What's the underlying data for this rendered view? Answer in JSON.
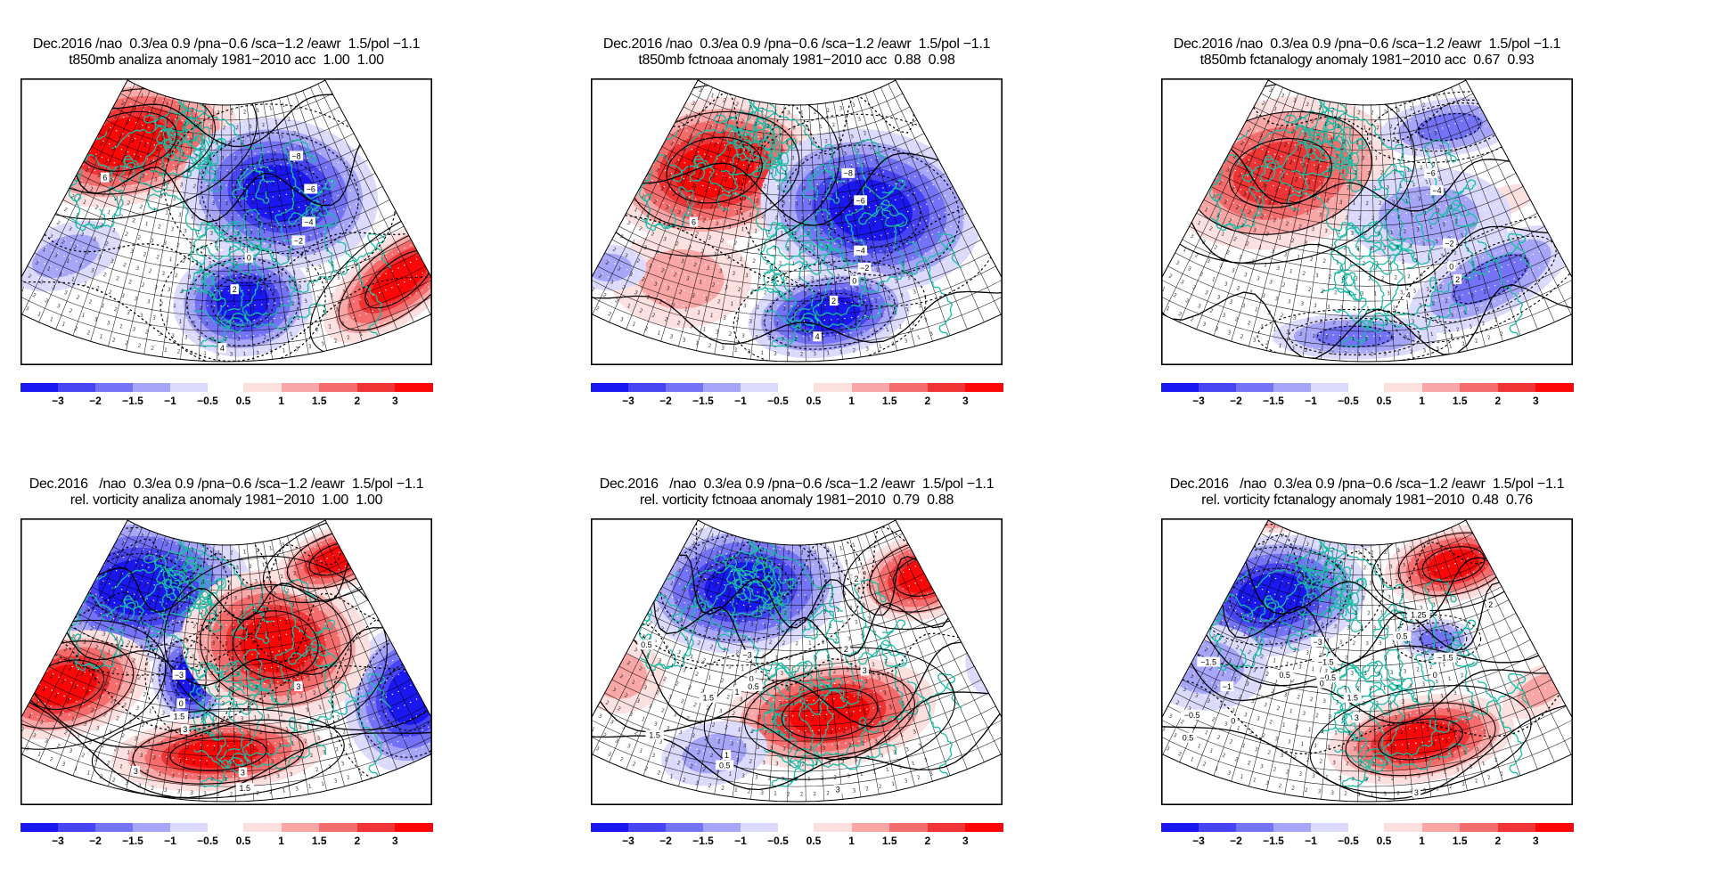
{
  "figure": {
    "background": "#ffffff",
    "grid": {
      "rows": 2,
      "cols": 3
    }
  },
  "chart_data": {
    "type": "heatmap",
    "description": "Six-panel meteorological verification figure: shaded anomaly maps (conic fan projection over Europe) with black contours, teal coastlines and split blue/red colorbars. Top row: t850mb anomaly (analysis, NOAA forecast, analogy forecast). Bottom row: relative vorticity anomaly (analysis, NOAA forecast, analogy forecast).",
    "shared": {
      "date": "Dec.2016",
      "climatology_period": "1981-2010",
      "teleconnection_indices": {
        "nao": 0.3,
        "ea": 0.9,
        "pna": -0.6,
        "sca": -1.2,
        "eawr": 1.5,
        "pol": -1.1
      }
    },
    "colorbar": {
      "blue_colors_dark_to_light": [
        "#1a17f0",
        "#4745f2",
        "#7573f5",
        "#a7a5f8",
        "#dbdafc"
      ],
      "red_colors_light_to_dark": [
        "#fcdfdf",
        "#f9a6a6",
        "#f46c6c",
        "#ee3434",
        "#fb0707"
      ],
      "blue_ticks": [
        "−3",
        "−2",
        "−1.5",
        "−1",
        "−0.5"
      ],
      "red_ticks": [
        "0.5",
        "1",
        "1.5",
        "2",
        "3"
      ]
    },
    "map_style": {
      "coast_color": "#19bda6",
      "graticule_color": "#000000",
      "contour_color": "#000000",
      "frame_color": "#000000",
      "gridpoint_dot_color": "#ffffff"
    },
    "panels": [
      {
        "id": "t850mb-analiza",
        "row": 0,
        "col": 0,
        "title_line1": "Dec.2016 /nao  0.3/ea 0.9 /pna−0.6 /sca−1.2 /eawr  1.5/pol −1.1",
        "title_line2": "t850mb analiza anomaly 1981−2010 acc  1.00  1.00",
        "variable": "t850mb",
        "method": "analiza",
        "scores": [
          1.0,
          1.0
        ],
        "contour_labels": [
          {
            "v": "−8",
            "x": 0.67,
            "y": 0.27
          },
          {
            "v": "−6",
            "x": 0.705,
            "y": 0.385
          },
          {
            "v": "−4",
            "x": 0.7,
            "y": 0.5
          },
          {
            "v": "−2",
            "x": 0.675,
            "y": 0.565
          },
          {
            "v": "0",
            "x": 0.555,
            "y": 0.625
          },
          {
            "v": "2",
            "x": 0.52,
            "y": 0.735
          },
          {
            "v": "4",
            "x": 0.49,
            "y": 0.94
          },
          {
            "v": "6",
            "x": 0.205,
            "y": 0.345
          }
        ],
        "anomaly_regions": [
          {
            "kind": "warm",
            "cx": 0.26,
            "cy": 0.22,
            "rx": 0.27,
            "ry": 0.22,
            "rot": -12,
            "levels": 5
          },
          {
            "kind": "warm",
            "cx": 0.92,
            "cy": 0.7,
            "rx": 0.22,
            "ry": 0.14,
            "rot": -38,
            "levels": 5
          },
          {
            "kind": "cool",
            "cx": 0.63,
            "cy": 0.4,
            "rx": 0.24,
            "ry": 0.26,
            "rot": 10,
            "levels": 5
          },
          {
            "kind": "cool",
            "cx": 0.54,
            "cy": 0.78,
            "rx": 0.17,
            "ry": 0.19,
            "rot": -5,
            "levels": 5
          },
          {
            "kind": "cool",
            "cx": 0.11,
            "cy": 0.62,
            "rx": 0.14,
            "ry": 0.11,
            "rot": -20,
            "levels": 2
          }
        ]
      },
      {
        "id": "t850mb-fctnoaa",
        "row": 0,
        "col": 1,
        "title_line1": "Dec.2016 /nao  0.3/ea 0.9 /pna−0.6 /sca−1.2 /eawr  1.5/pol −1.1",
        "title_line2": "t850mb fctnoaa anomaly 1981−2010 acc  0.88  0.98",
        "variable": "t850mb",
        "method": "fctnoaa",
        "scores": [
          0.88,
          0.98
        ],
        "contour_labels": [
          {
            "v": "−8",
            "x": 0.625,
            "y": 0.33
          },
          {
            "v": "−6",
            "x": 0.655,
            "y": 0.425
          },
          {
            "v": "−4",
            "x": 0.655,
            "y": 0.6
          },
          {
            "v": "−2",
            "x": 0.665,
            "y": 0.66
          },
          {
            "v": "0",
            "x": 0.64,
            "y": 0.705
          },
          {
            "v": "2",
            "x": 0.59,
            "y": 0.775
          },
          {
            "v": "4",
            "x": 0.55,
            "y": 0.9
          },
          {
            "v": "6",
            "x": 0.25,
            "y": 0.5
          }
        ],
        "anomaly_regions": [
          {
            "kind": "warm",
            "cx": 0.3,
            "cy": 0.32,
            "rx": 0.26,
            "ry": 0.25,
            "rot": -10,
            "levels": 5
          },
          {
            "kind": "warm",
            "cx": 0.22,
            "cy": 0.7,
            "rx": 0.17,
            "ry": 0.17,
            "rot": 0,
            "levels": 2
          },
          {
            "kind": "cool",
            "cx": 0.68,
            "cy": 0.46,
            "rx": 0.27,
            "ry": 0.28,
            "rot": 10,
            "levels": 5
          },
          {
            "kind": "cool",
            "cx": 0.58,
            "cy": 0.82,
            "rx": 0.2,
            "ry": 0.15,
            "rot": -10,
            "levels": 5
          },
          {
            "kind": "cool",
            "cx": 0.045,
            "cy": 0.66,
            "rx": 0.09,
            "ry": 0.08,
            "rot": 0,
            "levels": 2
          }
        ]
      },
      {
        "id": "t850mb-fctanalogy",
        "row": 0,
        "col": 2,
        "title_line1": "Dec.2016 /nao  0.3/ea 0.9 /pna−0.6 /sca−1.2 /eawr  1.5/pol −1.1",
        "title_line2": "t850mb fctanalogy anomaly 1981−2010 acc  0.67  0.93",
        "variable": "t850mb",
        "method": "fctanalogy",
        "scores": [
          0.67,
          0.93
        ],
        "contour_labels": [
          {
            "v": "−6",
            "x": 0.655,
            "y": 0.33
          },
          {
            "v": "−4",
            "x": 0.67,
            "y": 0.39
          },
          {
            "v": "−2",
            "x": 0.7,
            "y": 0.575
          },
          {
            "v": "0",
            "x": 0.705,
            "y": 0.655
          },
          {
            "v": "2",
            "x": 0.72,
            "y": 0.7
          },
          {
            "v": "4",
            "x": 0.6,
            "y": 0.755
          }
        ],
        "anomaly_regions": [
          {
            "kind": "warm",
            "cx": 0.29,
            "cy": 0.33,
            "rx": 0.28,
            "ry": 0.26,
            "rot": -12,
            "levels": 4
          },
          {
            "kind": "warm",
            "cx": 0.83,
            "cy": 0.43,
            "rx": 0.08,
            "ry": 0.05,
            "rot": -20,
            "levels": 1
          },
          {
            "kind": "cool",
            "cx": 0.7,
            "cy": 0.17,
            "rx": 0.17,
            "ry": 0.1,
            "rot": -8,
            "levels": 3
          },
          {
            "kind": "cool",
            "cx": 0.8,
            "cy": 0.7,
            "rx": 0.22,
            "ry": 0.13,
            "rot": -28,
            "levels": 3
          },
          {
            "kind": "cool",
            "cx": 0.47,
            "cy": 0.9,
            "rx": 0.2,
            "ry": 0.08,
            "rot": 0,
            "levels": 3
          },
          {
            "kind": "cool",
            "cx": 0.65,
            "cy": 0.48,
            "rx": 0.2,
            "ry": 0.17,
            "rot": 0,
            "levels": 2
          }
        ]
      },
      {
        "id": "vorticity-analiza",
        "row": 1,
        "col": 0,
        "title_line1": "Dec.2016   /nao  0.3/ea 0.9 /pna−0.6 /sca−1.2 /eawr  1.5/pol −1.1",
        "title_line2": "rel. vorticity analiza anomaly 1981−2010  1.00  1.00",
        "variable": "rel. vorticity",
        "method": "analiza",
        "scores": [
          1.0,
          1.0
        ],
        "contour_labels": [
          {
            "v": "−3",
            "x": 0.385,
            "y": 0.545
          },
          {
            "v": "0",
            "x": 0.39,
            "y": 0.645
          },
          {
            "v": "1.5",
            "x": 0.385,
            "y": 0.69
          },
          {
            "v": "3",
            "x": 0.4,
            "y": 0.735
          },
          {
            "v": "3",
            "x": 0.675,
            "y": 0.585
          },
          {
            "v": "3",
            "x": 0.28,
            "y": 0.88
          },
          {
            "v": "3",
            "x": 0.54,
            "y": 0.885
          },
          {
            "v": "1.5",
            "x": 0.545,
            "y": 0.94
          }
        ],
        "anomaly_regions": [
          {
            "kind": "cool",
            "cx": 0.29,
            "cy": 0.24,
            "rx": 0.27,
            "ry": 0.26,
            "rot": 0,
            "levels": 5
          },
          {
            "kind": "cool",
            "cx": 0.41,
            "cy": 0.56,
            "rx": 0.09,
            "ry": 0.17,
            "rot": -8,
            "levels": 5
          },
          {
            "kind": "cool",
            "cx": 0.95,
            "cy": 0.62,
            "rx": 0.16,
            "ry": 0.27,
            "rot": 18,
            "levels": 5
          },
          {
            "kind": "warm",
            "cx": 0.62,
            "cy": 0.44,
            "rx": 0.23,
            "ry": 0.26,
            "rot": 8,
            "levels": 5
          },
          {
            "kind": "warm",
            "cx": 0.11,
            "cy": 0.58,
            "rx": 0.21,
            "ry": 0.18,
            "rot": -15,
            "levels": 5
          },
          {
            "kind": "warm",
            "cx": 0.77,
            "cy": 0.14,
            "rx": 0.16,
            "ry": 0.11,
            "rot": -20,
            "levels": 5
          },
          {
            "kind": "warm",
            "cx": 0.48,
            "cy": 0.82,
            "rx": 0.26,
            "ry": 0.13,
            "rot": -4,
            "levels": 5
          }
        ]
      },
      {
        "id": "vorticity-fctnoaa",
        "row": 1,
        "col": 1,
        "title_line1": "Dec.2016   /nao  0.3/ea 0.9 /pna−0.6 /sca−1.2 /eawr  1.5/pol −1.1",
        "title_line2": "rel. vorticity fctnoaa anomaly 1981−2010  0.79  0.88",
        "variable": "rel. vorticity",
        "method": "fctnoaa",
        "scores": [
          0.79,
          0.88
        ],
        "contour_labels": [
          {
            "v": "0.5",
            "x": 0.135,
            "y": 0.44
          },
          {
            "v": "2",
            "x": 0.645,
            "y": 0.21
          },
          {
            "v": "2",
            "x": 0.62,
            "y": 0.455
          },
          {
            "v": "3",
            "x": 0.665,
            "y": 0.53
          },
          {
            "v": "−3",
            "x": 0.38,
            "y": 0.475
          },
          {
            "v": "0",
            "x": 0.39,
            "y": 0.56
          },
          {
            "v": "0.5",
            "x": 0.395,
            "y": 0.585
          },
          {
            "v": "1",
            "x": 0.355,
            "y": 0.605
          },
          {
            "v": "1.5",
            "x": 0.285,
            "y": 0.625
          },
          {
            "v": "1.5",
            "x": 0.155,
            "y": 0.755
          },
          {
            "v": "1",
            "x": 0.33,
            "y": 0.825
          },
          {
            "v": "0.5",
            "x": 0.325,
            "y": 0.86
          },
          {
            "v": "3",
            "x": 0.6,
            "y": 0.945
          }
        ],
        "anomaly_regions": [
          {
            "kind": "cool",
            "cx": 0.37,
            "cy": 0.24,
            "rx": 0.25,
            "ry": 0.23,
            "rot": -5,
            "levels": 5
          },
          {
            "kind": "warm",
            "cx": 0.81,
            "cy": 0.2,
            "rx": 0.17,
            "ry": 0.15,
            "rot": -15,
            "levels": 5
          },
          {
            "kind": "warm",
            "cx": 0.58,
            "cy": 0.68,
            "rx": 0.26,
            "ry": 0.19,
            "rot": -8,
            "levels": 5
          },
          {
            "kind": "warm",
            "cx": 0.07,
            "cy": 0.55,
            "rx": 0.11,
            "ry": 0.13,
            "rot": 0,
            "levels": 2
          },
          {
            "kind": "warm",
            "cx": 0.05,
            "cy": 0.3,
            "rx": 0.08,
            "ry": 0.08,
            "rot": 0,
            "levels": 2
          },
          {
            "kind": "cool",
            "cx": 0.3,
            "cy": 0.82,
            "rx": 0.13,
            "ry": 0.11,
            "rot": -10,
            "levels": 2
          },
          {
            "kind": "cool",
            "cx": 0.97,
            "cy": 0.5,
            "rx": 0.06,
            "ry": 0.12,
            "rot": 0,
            "levels": 2
          }
        ]
      },
      {
        "id": "vorticity-fctanalogy",
        "row": 1,
        "col": 2,
        "title_line1": "Dec.2016   /nao  0.3/ea 0.9 /pna−0.6 /sca−1.2 /eawr  1.5/pol −1.1",
        "title_line2": "rel. vorticity fctanalogy anomaly 1981−2010  0.48  0.76",
        "variable": "rel. vorticity",
        "method": "fctanalogy",
        "scores": [
          0.48,
          0.76
        ],
        "contour_labels": [
          {
            "v": "−1.5",
            "x": 0.115,
            "y": 0.5
          },
          {
            "v": "−1",
            "x": 0.16,
            "y": 0.585
          },
          {
            "v": "−0.5",
            "x": 0.075,
            "y": 0.685
          },
          {
            "v": "0",
            "x": 0.175,
            "y": 0.705
          },
          {
            "v": "0.5",
            "x": 0.065,
            "y": 0.765
          },
          {
            "v": "−3",
            "x": 0.38,
            "y": 0.43
          },
          {
            "v": "−1.5",
            "x": 0.4,
            "y": 0.5
          },
          {
            "v": "−0.5",
            "x": 0.405,
            "y": 0.555
          },
          {
            "v": "0",
            "x": 0.39,
            "y": 0.575
          },
          {
            "v": "0.5",
            "x": 0.3,
            "y": 0.545
          },
          {
            "v": "1.5",
            "x": 0.465,
            "y": 0.625
          },
          {
            "v": "3",
            "x": 0.475,
            "y": 0.695
          },
          {
            "v": "0",
            "x": 0.665,
            "y": 0.545
          },
          {
            "v": "−1.5",
            "x": 0.69,
            "y": 0.485
          },
          {
            "v": "1.25",
            "x": 0.625,
            "y": 0.335
          },
          {
            "v": "0.5",
            "x": 0.585,
            "y": 0.41
          },
          {
            "v": "2",
            "x": 0.8,
            "y": 0.3
          },
          {
            "v": "3",
            "x": 0.62,
            "y": 0.955
          }
        ],
        "anomaly_regions": [
          {
            "kind": "cool",
            "cx": 0.27,
            "cy": 0.27,
            "rx": 0.23,
            "ry": 0.21,
            "rot": -8,
            "levels": 5
          },
          {
            "kind": "warm",
            "cx": 0.71,
            "cy": 0.16,
            "rx": 0.17,
            "ry": 0.13,
            "rot": -12,
            "levels": 5
          },
          {
            "kind": "warm",
            "cx": 0.63,
            "cy": 0.77,
            "rx": 0.23,
            "ry": 0.15,
            "rot": -10,
            "levels": 5
          },
          {
            "kind": "warm",
            "cx": 0.92,
            "cy": 0.6,
            "rx": 0.1,
            "ry": 0.08,
            "rot": -30,
            "levels": 2
          },
          {
            "kind": "cool",
            "cx": 0.67,
            "cy": 0.42,
            "rx": 0.09,
            "ry": 0.07,
            "rot": 0,
            "levels": 3
          },
          {
            "kind": "cool",
            "cx": 0.11,
            "cy": 0.52,
            "rx": 0.15,
            "ry": 0.15,
            "rot": 0,
            "levels": 2
          },
          {
            "kind": "cool",
            "cx": 0.45,
            "cy": 0.06,
            "rx": 0.1,
            "ry": 0.05,
            "rot": 0,
            "levels": 2
          },
          {
            "kind": "warm",
            "cx": 0.27,
            "cy": 0.01,
            "rx": 0.08,
            "ry": 0.04,
            "rot": 0,
            "levels": 2
          }
        ]
      }
    ]
  }
}
